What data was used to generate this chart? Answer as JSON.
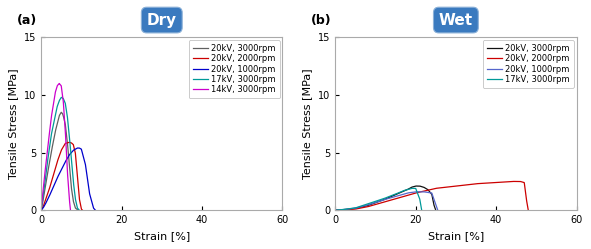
{
  "title_a": "Dry",
  "title_b": "Wet",
  "label_a": "(a)",
  "label_b": "(b)",
  "xlabel": "Strain [%]",
  "ylabel": "Tensile Stress [MPa]",
  "xlim": [
    0,
    60
  ],
  "ylim": [
    0,
    15
  ],
  "xticks": [
    0,
    20,
    40,
    60
  ],
  "yticks": [
    0,
    5,
    10,
    15
  ],
  "legend_a": [
    "20kV, 3000rpm",
    "20kV, 2000rpm",
    "20kV, 1000rpm",
    "17kV, 3000rpm",
    "14kV, 3000rpm"
  ],
  "legend_b": [
    "20kV, 3000rpm",
    "20kV, 2000rpm",
    "20kV, 1000rpm",
    "17kV, 3000rpm"
  ],
  "colors_a": [
    "#606060",
    "#cc0000",
    "#0000cc",
    "#009999",
    "#cc00cc"
  ],
  "colors_b": [
    "#111111",
    "#cc0000",
    "#5566cc",
    "#009999"
  ],
  "title_box_color": "#3a7abf",
  "title_text_color": "#ffffff",
  "title_fontsize": 11,
  "axis_fontsize": 7,
  "legend_fontsize": 6,
  "dry_data": [
    {
      "x": [
        0,
        0.3,
        0.8,
        1.5,
        2.5,
        3.5,
        4.0,
        4.5,
        5.0,
        5.3,
        5.5,
        6.0,
        6.5,
        7.0,
        7.5,
        8.0,
        8.5,
        9.0,
        9.3
      ],
      "y": [
        0,
        0.5,
        1.5,
        3.0,
        5.0,
        6.8,
        7.5,
        8.2,
        8.5,
        8.4,
        8.2,
        7.5,
        6.0,
        4.0,
        2.0,
        0.8,
        0.2,
        0.05,
        0
      ]
    },
    {
      "x": [
        0,
        0.5,
        1.0,
        2.0,
        3.0,
        4.0,
        5.0,
        6.0,
        7.0,
        7.5,
        8.0,
        8.5,
        9.0,
        9.5,
        10.0,
        10.3
      ],
      "y": [
        0,
        0.3,
        0.8,
        1.8,
        3.0,
        4.2,
        5.2,
        5.8,
        5.9,
        5.85,
        5.7,
        5.0,
        3.0,
        1.0,
        0.1,
        0
      ]
    },
    {
      "x": [
        0,
        0.5,
        1.0,
        2.0,
        3.0,
        4.0,
        5.0,
        6.0,
        7.0,
        8.0,
        9.0,
        9.5,
        10.0,
        11.0,
        12.0,
        13.0,
        13.5
      ],
      "y": [
        0,
        0.2,
        0.5,
        1.2,
        2.0,
        2.8,
        3.5,
        4.2,
        4.8,
        5.2,
        5.4,
        5.4,
        5.3,
        4.0,
        1.5,
        0.2,
        0
      ]
    },
    {
      "x": [
        0,
        0.3,
        0.8,
        1.5,
        2.5,
        3.5,
        4.0,
        4.5,
        5.0,
        5.5,
        6.0,
        6.5,
        7.0,
        7.5,
        8.0,
        8.5,
        9.0,
        9.5
      ],
      "y": [
        0,
        0.8,
        2.0,
        4.0,
        6.5,
        8.2,
        9.0,
        9.5,
        9.8,
        9.7,
        9.3,
        8.2,
        6.5,
        4.5,
        2.5,
        1.0,
        0.2,
        0
      ]
    },
    {
      "x": [
        0,
        0.3,
        0.8,
        1.5,
        2.5,
        3.5,
        4.0,
        4.5,
        5.0,
        5.5,
        6.0,
        6.5,
        7.0,
        7.3
      ],
      "y": [
        0,
        1.0,
        2.8,
        5.0,
        8.0,
        10.2,
        10.8,
        11.0,
        10.8,
        9.5,
        7.0,
        3.5,
        1.0,
        0
      ]
    }
  ],
  "wet_data": [
    {
      "x": [
        0,
        2,
        5,
        8,
        12,
        16,
        18,
        19,
        20,
        21,
        22,
        23,
        24,
        24.5,
        25.0
      ],
      "y": [
        0,
        0.05,
        0.15,
        0.4,
        0.9,
        1.5,
        1.8,
        2.0,
        2.1,
        2.1,
        2.0,
        1.8,
        1.4,
        0.5,
        0
      ]
    },
    {
      "x": [
        0,
        2,
        5,
        8,
        12,
        16,
        20,
        25,
        30,
        35,
        40,
        44,
        46,
        47,
        47.5,
        48.0
      ],
      "y": [
        0,
        0.03,
        0.1,
        0.3,
        0.7,
        1.1,
        1.5,
        1.9,
        2.1,
        2.3,
        2.4,
        2.5,
        2.5,
        2.4,
        1.0,
        0
      ]
    },
    {
      "x": [
        0,
        2,
        5,
        8,
        12,
        16,
        18,
        20,
        22,
        24,
        25,
        25.5
      ],
      "y": [
        0,
        0.05,
        0.18,
        0.45,
        0.9,
        1.3,
        1.5,
        1.6,
        1.6,
        1.5,
        0.5,
        0
      ]
    },
    {
      "x": [
        0,
        2,
        5,
        8,
        12,
        15,
        17,
        19,
        20,
        21,
        21.5
      ],
      "y": [
        0,
        0.06,
        0.2,
        0.55,
        1.0,
        1.4,
        1.7,
        1.9,
        1.9,
        1.0,
        0
      ]
    }
  ]
}
